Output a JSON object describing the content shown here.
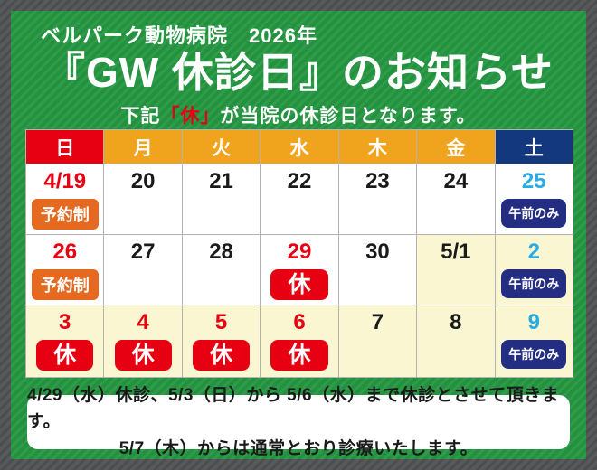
{
  "header": {
    "clinic_line": "ベルパーク動物病院　2026年",
    "title": "『GW 休診日』のお知らせ",
    "subtitle_prefix": "下記",
    "subtitle_highlight": "「休」",
    "subtitle_suffix": "が当院の休診日となります。"
  },
  "calendar": {
    "weekdays": [
      {
        "label": "日",
        "type": "sun"
      },
      {
        "label": "月",
        "type": "weekday"
      },
      {
        "label": "火",
        "type": "weekday"
      },
      {
        "label": "水",
        "type": "weekday"
      },
      {
        "label": "木",
        "type": "weekday"
      },
      {
        "label": "金",
        "type": "weekday"
      },
      {
        "label": "土",
        "type": "sat"
      }
    ],
    "badge_labels": {
      "reserve": "予約制",
      "closed": "休",
      "morning": "午前のみ"
    },
    "rows": [
      [
        {
          "date": "4/19",
          "tone": "red",
          "bg": "white",
          "badge": "reserve"
        },
        {
          "date": "20",
          "tone": "black",
          "bg": "white",
          "badge": null
        },
        {
          "date": "21",
          "tone": "black",
          "bg": "white",
          "badge": null
        },
        {
          "date": "22",
          "tone": "black",
          "bg": "white",
          "badge": null
        },
        {
          "date": "23",
          "tone": "black",
          "bg": "white",
          "badge": null
        },
        {
          "date": "24",
          "tone": "black",
          "bg": "white",
          "badge": null
        },
        {
          "date": "25",
          "tone": "cyan",
          "bg": "white",
          "badge": "morning"
        }
      ],
      [
        {
          "date": "26",
          "tone": "red",
          "bg": "white",
          "badge": "reserve"
        },
        {
          "date": "27",
          "tone": "black",
          "bg": "white",
          "badge": null
        },
        {
          "date": "28",
          "tone": "black",
          "bg": "white",
          "badge": null
        },
        {
          "date": "29",
          "tone": "red",
          "bg": "white",
          "badge": "closed"
        },
        {
          "date": "30",
          "tone": "black",
          "bg": "white",
          "badge": null
        },
        {
          "date": "5/1",
          "tone": "black",
          "bg": "cream",
          "badge": null
        },
        {
          "date": "2",
          "tone": "cyan",
          "bg": "cream",
          "badge": "morning"
        }
      ],
      [
        {
          "date": "3",
          "tone": "red",
          "bg": "cream",
          "badge": "closed"
        },
        {
          "date": "4",
          "tone": "red",
          "bg": "cream",
          "badge": "closed"
        },
        {
          "date": "5",
          "tone": "red",
          "bg": "cream",
          "badge": "closed"
        },
        {
          "date": "6",
          "tone": "red",
          "bg": "cream",
          "badge": "closed"
        },
        {
          "date": "7",
          "tone": "black",
          "bg": "cream",
          "badge": null
        },
        {
          "date": "8",
          "tone": "black",
          "bg": "cream",
          "badge": null
        },
        {
          "date": "9",
          "tone": "cyan",
          "bg": "cream",
          "badge": "morning"
        }
      ]
    ]
  },
  "footer_note": {
    "line1": "4/29（水）休診、5/3（日）から 5/6（水）まで休診とさせて頂きます。",
    "line2": "5/7（木）からは通常とおり診療いたします。"
  },
  "colors": {
    "panel_green": "#23913f",
    "border_gray": "#58595b",
    "sunday_red": "#e60012",
    "weekday_orange": "#f0a41e",
    "saturday_navy": "#14387d",
    "saturday_date_cyan": "#29abe2",
    "holiday_cream": "#faf6d2",
    "badge_reserve_orange": "#e5691e",
    "badge_morning_navy": "#232e82",
    "badge_closed_red": "#e60012"
  }
}
